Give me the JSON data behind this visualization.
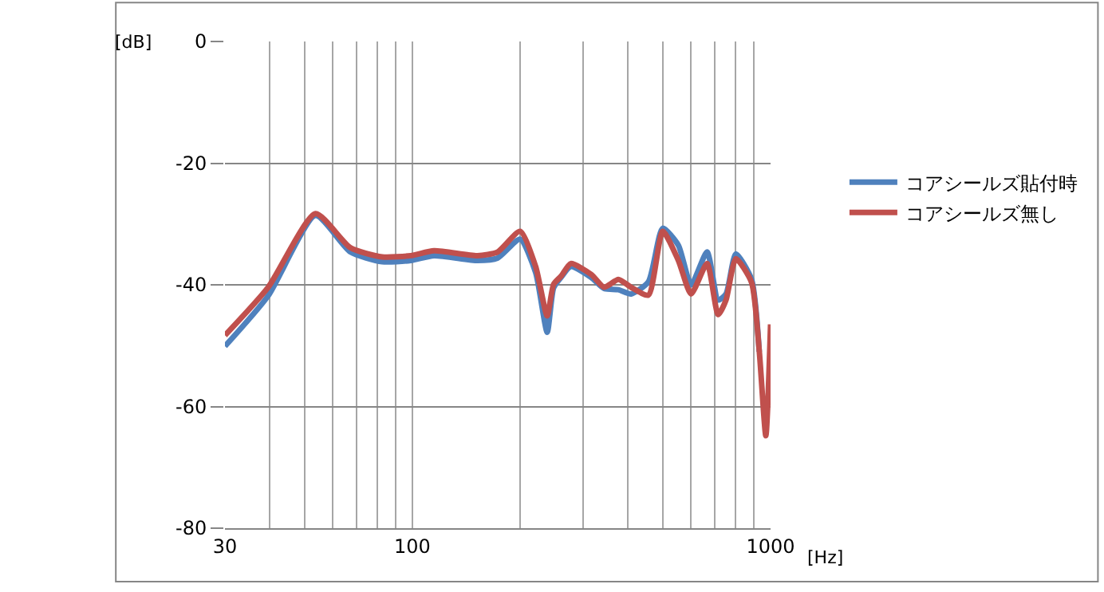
{
  "chart_data": {
    "type": "line",
    "xlabel": "[Hz]",
    "ylabel": "[dB]",
    "log": "x",
    "xlim": [
      30,
      1000
    ],
    "ylim": [
      -80,
      0
    ],
    "xticks": [
      30,
      {
        "value": 40,
        "label": null
      },
      {
        "value": 50,
        "label": null
      },
      {
        "value": 60,
        "label": null
      },
      {
        "value": 70,
        "label": null
      },
      {
        "value": 80,
        "label": null
      },
      {
        "value": 90,
        "label": null
      },
      100,
      {
        "value": 200,
        "label": null
      },
      {
        "value": 300,
        "label": null
      },
      {
        "value": 400,
        "label": null
      },
      {
        "value": 500,
        "label": null
      },
      {
        "value": 600,
        "label": null
      },
      {
        "value": 700,
        "label": null
      },
      {
        "value": 800,
        "label": null
      },
      {
        "value": 900,
        "label": null
      },
      1000
    ],
    "yticks": [
      -80,
      -60,
      -40,
      -20,
      0
    ],
    "grid": true,
    "legend": "right",
    "marker": "none",
    "line_style": "solid",
    "series": [
      {
        "name": "コアシールズ貼付時",
        "color": "#4f81bd",
        "x": [
          30,
          39.6,
          53.7,
          67.2,
          82.4,
          99,
          115,
          152,
          173,
          200,
          221,
          238,
          248,
          260,
          277,
          316,
          343,
          376,
          408,
          456,
          500,
          553,
          600,
          665,
          714,
          751,
          800,
          885,
          930
        ],
        "values": [
          -50.1,
          -41.8,
          -28.6,
          -34.6,
          -36.2,
          -36.0,
          -35.2,
          -36.0,
          -35.6,
          -32.5,
          -38.0,
          -47.8,
          -40.5,
          -38.8,
          -37.0,
          -38.8,
          -40.6,
          -40.8,
          -41.5,
          -39.5,
          -30.7,
          -33.5,
          -40.0,
          -34.6,
          -42.5,
          -41.5,
          -34.9,
          -39.1,
          -51.0
        ]
      },
      {
        "name": "コアシールズ無し",
        "color": "#c0504d",
        "x": [
          30,
          39.6,
          53.7,
          67.2,
          82.4,
          99,
          115,
          152,
          173,
          200,
          221,
          238,
          248,
          260,
          277,
          316,
          343,
          376,
          408,
          456,
          500,
          553,
          600,
          665,
          714,
          751,
          800,
          885,
          930,
          970,
          1000
        ],
        "values": [
          -48.3,
          -40.4,
          -28.3,
          -33.9,
          -35.4,
          -35.2,
          -34.4,
          -35.2,
          -34.6,
          -31.2,
          -37.0,
          -45.1,
          -39.9,
          -38.6,
          -36.5,
          -38.3,
          -40.4,
          -39.1,
          -40.4,
          -41.7,
          -31.2,
          -36.0,
          -41.5,
          -36.5,
          -44.9,
          -42.5,
          -35.7,
          -39.6,
          -50.9,
          -64.8,
          -46.5
        ]
      }
    ]
  }
}
